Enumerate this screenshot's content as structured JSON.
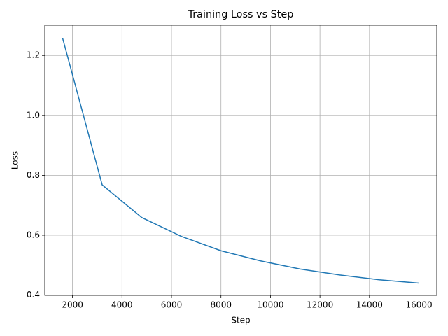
{
  "chart_data": {
    "type": "line",
    "title": "Training Loss vs Step",
    "x_label": "Step",
    "y_label": "Loss",
    "x": [
      1600,
      3200,
      4800,
      6400,
      8000,
      9600,
      11200,
      12800,
      14400,
      16000
    ],
    "series": [
      {
        "name": "Loss",
        "color": "#1f77b4",
        "values": [
          1.258,
          0.768,
          0.659,
          0.596,
          0.548,
          0.514,
          0.487,
          0.467,
          0.451,
          0.44
        ]
      }
    ],
    "xlim": [
      880,
      16720
    ],
    "xticks": [
      2000,
      4000,
      6000,
      8000,
      10000,
      12000,
      14000,
      16000
    ],
    "ylim": [
      0.399,
      1.301
    ],
    "yticks": [
      0.4,
      0.6,
      0.8,
      {
        "value": 1,
        "label": "1.0"
      },
      1.2
    ],
    "grid": true
  }
}
